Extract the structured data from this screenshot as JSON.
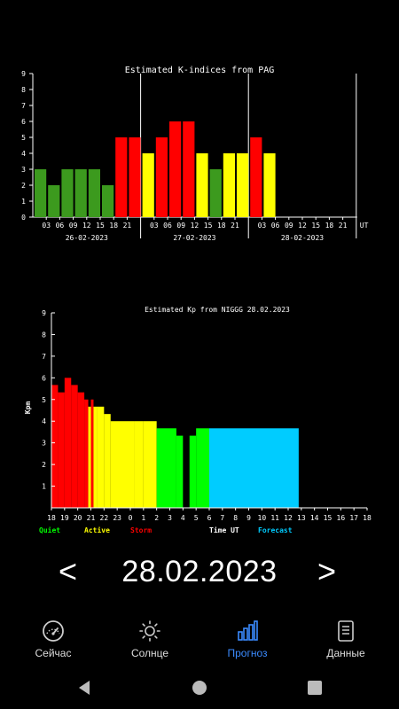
{
  "kindex_chart": {
    "title": "Estimated K-indices from PAG",
    "y_ticks": [
      "0",
      "1",
      "2",
      "3",
      "4",
      "5",
      "6",
      "7",
      "8",
      "9"
    ],
    "x_hour_ticks": [
      "03",
      "06",
      "09",
      "12",
      "15",
      "18",
      "21"
    ],
    "unit_label": "UT",
    "days": [
      "26-02-2023",
      "27-02-2023",
      "28-02-2023"
    ]
  },
  "kp_chart": {
    "title": "Estimated Kp from NIGGG 28.02.2023",
    "ylabel": "Kpm",
    "y_ticks": [
      "1",
      "2",
      "3",
      "4",
      "5",
      "6",
      "7",
      "8",
      "9"
    ],
    "x_ticks": [
      "18",
      "19",
      "20",
      "21",
      "22",
      "23",
      "0",
      "1",
      "2",
      "3",
      "4",
      "5",
      "6",
      "7",
      "8",
      "9",
      "10",
      "11",
      "12",
      "13",
      "14",
      "15",
      "16",
      "17",
      "18"
    ],
    "legend": {
      "quiet": "Quiet",
      "active": "Active",
      "storm": "Storm",
      "time": "Time UT",
      "forecast": "Forecast"
    }
  },
  "chart_data": [
    {
      "type": "bar",
      "title": "Estimated K-indices from PAG",
      "xlabel": "UT",
      "ylim": [
        0,
        9
      ],
      "days": [
        "26-02-2023",
        "27-02-2023",
        "28-02-2023"
      ],
      "slots_per_day": 8,
      "values": [
        3,
        2,
        3,
        3,
        3,
        2,
        5,
        5,
        4,
        5,
        6,
        6,
        4,
        3,
        4,
        4,
        5,
        4
      ],
      "colors": {
        "quiet": "#3c9a1e",
        "active": "#ffff00",
        "storm": "#ff0000"
      }
    },
    {
      "type": "area",
      "title": "Estimated Kp from NIGGG 28.02.2023",
      "ylabel": "Kpm",
      "ylim": [
        0,
        9
      ],
      "x_unit": "hours UT, from 18:00 of previous day",
      "segments": [
        {
          "from": 18.0,
          "to": 18.5,
          "kp": 5.67,
          "level": "storm"
        },
        {
          "from": 18.5,
          "to": 19.0,
          "kp": 5.33,
          "level": "storm"
        },
        {
          "from": 19.0,
          "to": 19.5,
          "kp": 6.0,
          "level": "storm"
        },
        {
          "from": 19.5,
          "to": 20.0,
          "kp": 5.67,
          "level": "storm"
        },
        {
          "from": 20.0,
          "to": 20.5,
          "kp": 5.33,
          "level": "storm"
        },
        {
          "from": 20.5,
          "to": 20.8,
          "kp": 5.0,
          "level": "storm"
        },
        {
          "from": 20.8,
          "to": 21.0,
          "kp": 4.67,
          "level": "active"
        },
        {
          "from": 21.0,
          "to": 21.2,
          "kp": 5.0,
          "level": "storm"
        },
        {
          "from": 21.2,
          "to": 21.5,
          "kp": 4.67,
          "level": "active"
        },
        {
          "from": 21.5,
          "to": 22.0,
          "kp": 4.67,
          "level": "active"
        },
        {
          "from": 22.0,
          "to": 22.5,
          "kp": 4.33,
          "level": "active"
        },
        {
          "from": 22.5,
          "to": 24.3,
          "kp": 4.0,
          "level": "active"
        },
        {
          "from": 24.3,
          "to": 25.0,
          "kp": 4.0,
          "level": "active"
        },
        {
          "from": 25.0,
          "to": 26.0,
          "kp": 4.0,
          "level": "active"
        },
        {
          "from": 26.0,
          "to": 27.5,
          "kp": 3.67,
          "level": "quiet"
        },
        {
          "from": 27.5,
          "to": 28.0,
          "kp": 3.33,
          "level": "quiet"
        },
        {
          "from": 28.5,
          "to": 29.0,
          "kp": 3.33,
          "level": "quiet"
        },
        {
          "from": 29.0,
          "to": 30.0,
          "kp": 3.67,
          "level": "quiet"
        },
        {
          "from": 30.0,
          "to": 36.8,
          "kp": 3.67,
          "level": "forecast"
        }
      ],
      "colors": {
        "quiet": "#00ff00",
        "active": "#ffff00",
        "storm": "#ff0000",
        "forecast": "#00ccff"
      }
    }
  ],
  "date_nav": {
    "prev": "<",
    "date": "28.02.2023",
    "next": ">"
  },
  "bottom_nav": [
    {
      "label": "Сейчас",
      "icon": "speedometer-icon",
      "active": false
    },
    {
      "label": "Солнце",
      "icon": "sun-icon",
      "active": false
    },
    {
      "label": "Прогноз",
      "icon": "bar-chart-icon",
      "active": true
    },
    {
      "label": "Данные",
      "icon": "document-icon",
      "active": false
    }
  ],
  "accent_color": "#3b8bff"
}
